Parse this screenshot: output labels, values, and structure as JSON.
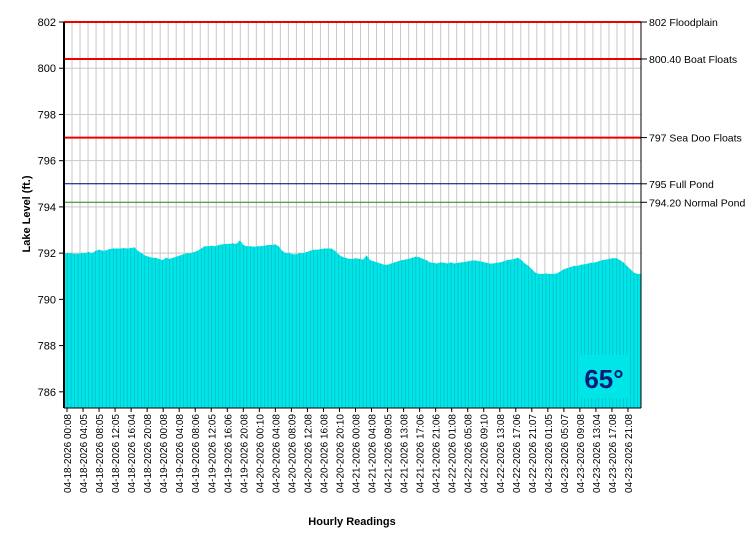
{
  "chart_data": {
    "type": "area",
    "xlabel": "Hourly Readings",
    "ylabel": "Lake Level (ft.)",
    "ylim": [
      785.3,
      802
    ],
    "yticks": [
      786,
      788,
      790,
      792,
      794,
      796,
      798,
      800,
      802
    ],
    "grid": true,
    "x_tick_labels": [
      "04-18-2026 00:08",
      "04-18-2026 04:05",
      "04-18-2026 08:05",
      "04-18-2026 12:05",
      "04-18-2026 16:04",
      "04-18-2026 20:08",
      "04-19-2026 00:08",
      "04-19-2026 04:08",
      "04-19-2026 08:06",
      "04-19-2026 12:05",
      "04-19-2026 16:06",
      "04-19-2026 20:08",
      "04-20-2026 00:10",
      "04-20-2026 04:08",
      "04-20-2026 08:09",
      "04-20-2026 12:08",
      "04-20-2026 16:08",
      "04-20-2026 20:10",
      "04-21-2026 00:08",
      "04-21-2026 04:08",
      "04-21-2026 09:05",
      "04-21-2026 13:08",
      "04-21-2026 17:06",
      "04-21-2026 21:06",
      "04-22-2026 01:08",
      "04-22-2026 05:08",
      "04-22-2026 09:10",
      "04-22-2026 13:08",
      "04-22-2026 17:06",
      "04-22-2026 21:07",
      "04-23-2026 01:05",
      "04-23-2026 05:07",
      "04-23-2026 09:08",
      "04-23-2026 13:04",
      "04-23-2026 17:08",
      "04-23-2026 21:08"
    ],
    "series": [
      {
        "color": "#00e5e8",
        "values": [
          792.0,
          792.0,
          792.0,
          791.97,
          791.97,
          792.0,
          792.0,
          792.05,
          792.0,
          792.1,
          792.15,
          792.1,
          792.12,
          792.18,
          792.2,
          792.2,
          792.2,
          792.22,
          792.2,
          792.22,
          792.25,
          792.1,
          792.0,
          791.9,
          791.85,
          791.8,
          791.8,
          791.75,
          791.7,
          791.8,
          791.75,
          791.8,
          791.85,
          791.9,
          791.95,
          792.0,
          792.0,
          792.05,
          792.1,
          792.2,
          792.3,
          792.3,
          792.32,
          792.3,
          792.35,
          792.38,
          792.4,
          792.4,
          792.42,
          792.4,
          792.55,
          792.35,
          792.3,
          792.3,
          792.28,
          792.3,
          792.3,
          792.32,
          792.35,
          792.35,
          792.38,
          792.3,
          792.1,
          792.0,
          792.0,
          791.95,
          791.95,
          792.0,
          792.0,
          792.05,
          792.1,
          792.15,
          792.15,
          792.18,
          792.2,
          792.2,
          792.2,
          792.1,
          791.95,
          791.85,
          791.8,
          791.75,
          791.75,
          791.78,
          791.75,
          791.72,
          791.9,
          791.7,
          791.65,
          791.6,
          791.55,
          791.5,
          791.5,
          791.55,
          791.6,
          791.65,
          791.7,
          791.72,
          791.75,
          791.8,
          791.85,
          791.82,
          791.75,
          791.7,
          791.6,
          791.58,
          791.55,
          791.6,
          791.58,
          791.55,
          791.6,
          791.55,
          791.58,
          791.6,
          791.62,
          791.65,
          791.68,
          791.68,
          791.65,
          791.62,
          791.58,
          791.55,
          791.55,
          791.58,
          791.6,
          791.65,
          791.7,
          791.72,
          791.75,
          791.8,
          791.7,
          791.55,
          791.45,
          791.3,
          791.15,
          791.1,
          791.1,
          791.12,
          791.1,
          791.1,
          791.12,
          791.2,
          791.3,
          791.35,
          791.4,
          791.45,
          791.45,
          791.5,
          791.52,
          791.55,
          791.58,
          791.6,
          791.65,
          791.7,
          791.72,
          791.75,
          791.78,
          791.78,
          791.7,
          791.6,
          791.45,
          791.3,
          791.15,
          791.1,
          791.1
        ]
      }
    ],
    "reference_lines": [
      {
        "value": 802,
        "label": "802 Floodplain",
        "color": "#ee0000"
      },
      {
        "value": 800.4,
        "label": "800.40 Boat Floats",
        "color": "#ee0000"
      },
      {
        "value": 797,
        "label": "797 Sea Doo Floats",
        "color": "#ee0000"
      },
      {
        "value": 795,
        "label": "795 Full Pond",
        "color": "#000080"
      },
      {
        "value": 794.2,
        "label": "794.20 Normal Pond",
        "color": "#208020"
      }
    ],
    "annotation": {
      "text": "65°",
      "box_color": "#00e5e8"
    }
  }
}
